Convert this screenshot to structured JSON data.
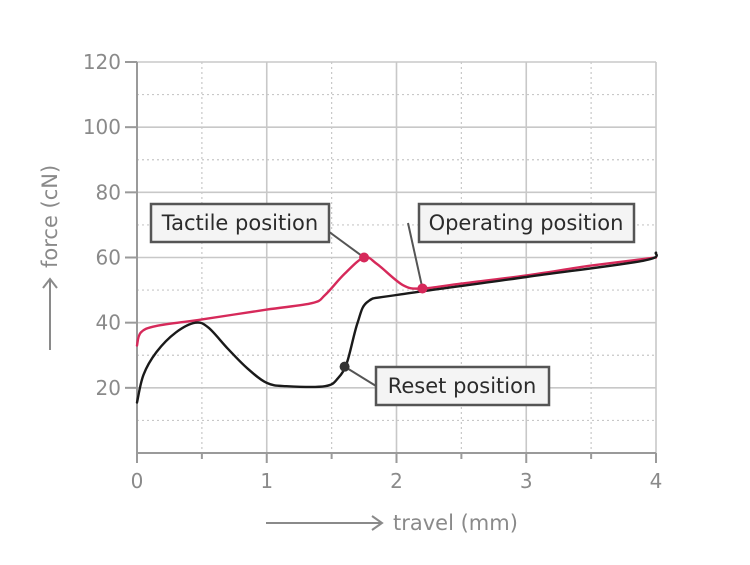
{
  "chart_data": {
    "type": "line",
    "xlabel": "travel (mm)",
    "ylabel": "force (cN)",
    "xlim": [
      0,
      4
    ],
    "ylim": [
      0,
      120
    ],
    "x_ticks": [
      "0",
      "1",
      "2",
      "3",
      "4"
    ],
    "y_ticks": [
      "20",
      "40",
      "60",
      "80",
      "100",
      "120"
    ],
    "grid": "on (dotted minor, solid major)",
    "colors": {
      "actuation": "#d6295a",
      "reset": "#1a1a1a",
      "axis": "#9a9a9a",
      "grid": "#c8c8c8"
    },
    "series": [
      {
        "key": "actuation",
        "color": "#d6295a",
        "points": [
          [
            0,
            33
          ],
          [
            0.03,
            37
          ],
          [
            0.15,
            39
          ],
          [
            0.5,
            41
          ],
          [
            1.0,
            44
          ],
          [
            1.35,
            46
          ],
          [
            1.45,
            48.5
          ],
          [
            1.6,
            55
          ],
          [
            1.75,
            60
          ],
          [
            1.85,
            58
          ],
          [
            2.05,
            51.5
          ],
          [
            2.2,
            50.5
          ],
          [
            2.5,
            52
          ],
          [
            3.0,
            54.5
          ],
          [
            3.5,
            57.5
          ],
          [
            4.0,
            60
          ]
        ]
      },
      {
        "key": "reset",
        "color": "#1a1a1a",
        "points": [
          [
            0,
            15.5
          ],
          [
            0.05,
            24
          ],
          [
            0.15,
            31
          ],
          [
            0.3,
            37
          ],
          [
            0.45,
            40
          ],
          [
            0.55,
            38.5
          ],
          [
            0.7,
            32
          ],
          [
            0.85,
            26
          ],
          [
            1.0,
            21.5
          ],
          [
            1.15,
            20.5
          ],
          [
            1.45,
            20.5
          ],
          [
            1.55,
            23
          ],
          [
            1.62,
            28
          ],
          [
            1.7,
            40
          ],
          [
            1.78,
            46.5
          ],
          [
            2.0,
            48.5
          ],
          [
            3.0,
            54
          ],
          [
            3.9,
            59
          ],
          [
            4.0,
            61.5
          ]
        ]
      }
    ],
    "annotations": [
      {
        "text": "Tactile position",
        "point": [
          1.75,
          60
        ],
        "color": "#d6295a"
      },
      {
        "text": "Operating position",
        "point": [
          2.2,
          50.5
        ],
        "color": "#d6295a"
      },
      {
        "text": "Reset position",
        "point": [
          1.6,
          26.5
        ],
        "color": "#333333"
      }
    ]
  }
}
